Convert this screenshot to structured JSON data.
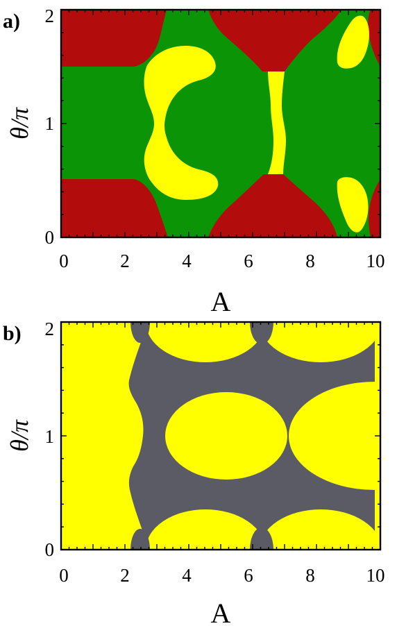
{
  "colors": {
    "red": "#b30c0c",
    "green": "#0b9406",
    "yellow": "#ffff00",
    "gray": "#5b5b66",
    "frame": "#000000"
  },
  "chart_data": [
    {
      "type": "heatmap",
      "panel_label": "a)",
      "xlabel": "A",
      "ylabel": "θ/π",
      "xlim": [
        0,
        10
      ],
      "ylim": [
        0,
        2
      ],
      "xticks": [
        "0",
        "2",
        "4",
        "6",
        "8",
        "10"
      ],
      "yticks": [
        "0",
        "1",
        "2"
      ],
      "background_region": "green",
      "regions": [
        {
          "color": "red",
          "description": "lower-left lobe, A 0–3.3, θ/π 0–0.5"
        },
        {
          "color": "red",
          "description": "upper-left lobe, A 0–3.3, θ/π 1.5–2"
        },
        {
          "color": "red",
          "description": "bottom-center lobe, A 4.5–8.6, θ/π 0–0.55"
        },
        {
          "color": "red",
          "description": "top-center lobe, A 4.5–8.6, θ/π 1.45–2"
        },
        {
          "color": "red",
          "description": "right edge strips, A 9.8–10"
        },
        {
          "color": "yellow",
          "description": "crescent, A 2.6–4.7, θ/π 0.35–1.65"
        },
        {
          "color": "yellow",
          "description": "vertical strip, A 6.4–6.9, θ/π 0.55–1.45"
        },
        {
          "color": "yellow",
          "description": "small islands near A 9.3, θ/π 0.05–0.5 and 1.5–1.95"
        }
      ]
    },
    {
      "type": "heatmap",
      "panel_label": "b)",
      "xlabel": "A",
      "ylabel": "θ/π",
      "xlim": [
        0,
        10
      ],
      "ylim": [
        0,
        2
      ],
      "xticks": [
        "0",
        "2",
        "4",
        "6",
        "8",
        "10"
      ],
      "yticks": [
        "0",
        "1",
        "2"
      ],
      "background_region": "gray",
      "regions": [
        {
          "color": "yellow",
          "description": "left band, A 0–2.1, all θ"
        },
        {
          "color": "yellow",
          "description": "ellipse centred A 5, θ/π 1"
        },
        {
          "color": "yellow",
          "description": "ellipse centred A ~10, θ/π 1"
        },
        {
          "color": "yellow",
          "description": "half-ellipses along θ/π = 0 and 2, centred A 4.5 and 8"
        }
      ]
    }
  ]
}
